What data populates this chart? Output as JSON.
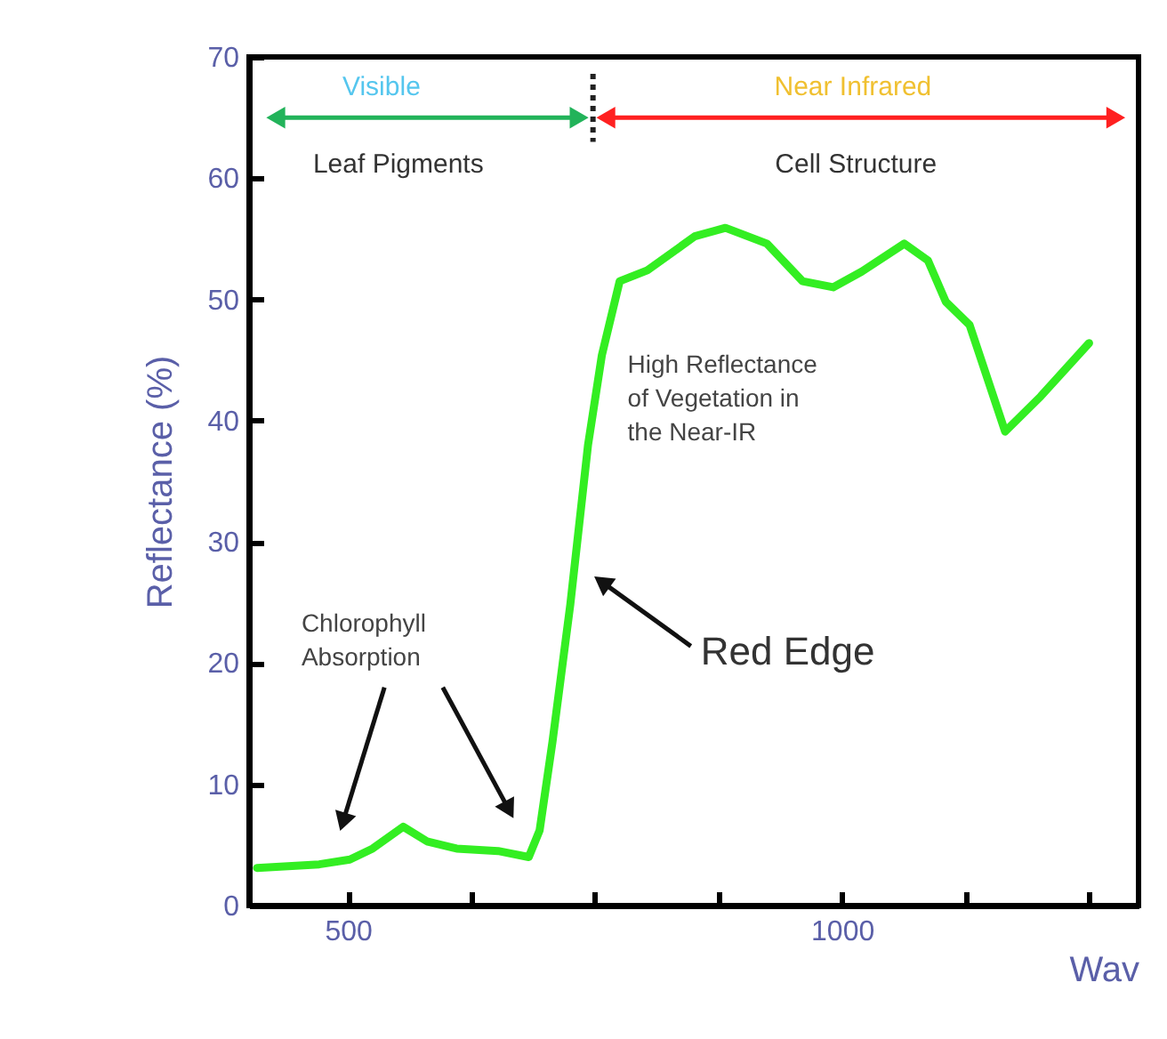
{
  "chart_data": {
    "type": "line",
    "xlabel": "Wav",
    "ylabel": "Reflectance (%)",
    "x": [
      408,
      471,
      502,
      525,
      556,
      580,
      610,
      652,
      683,
      694,
      707,
      725,
      743,
      757,
      775,
      803,
      851,
      882,
      924,
      960,
      991,
      1020,
      1063,
      1087,
      1105,
      1129,
      1165,
      1201,
      1250
    ],
    "series": [
      {
        "color": "#33ee22",
        "values": [
          3.1,
          3.4,
          3.8,
          4.7,
          6.5,
          5.3,
          4.7,
          4.5,
          4.0,
          6.2,
          13.5,
          24.8,
          38.0,
          45.4,
          51.5,
          52.4,
          55.2,
          55.9,
          54.6,
          51.5,
          51.0,
          52.3,
          54.6,
          53.2,
          49.8,
          47.9,
          39.1,
          42.0,
          46.4
        ]
      }
    ],
    "xlim": [
      400,
      1300
    ],
    "xticks": [
      500,
      {
        "value": 625,
        "label": null
      },
      {
        "value": 750,
        "label": null
      },
      {
        "value": 875,
        "label": null
      },
      1000,
      {
        "value": 1125,
        "label": null
      },
      {
        "value": 1250,
        "label": null
      }
    ],
    "ylim": [
      0,
      70
    ],
    "yticks": [
      0,
      10,
      20,
      30,
      40,
      50,
      60,
      70
    ],
    "annotations": [
      "Visible",
      "Near Infrared",
      "Leaf Pigments",
      "Cell Structure",
      "High Reflectance\nof Vegetation in\nthe Near-IR",
      "Chlorophyll\nAbsorption",
      "Red Edge"
    ]
  }
}
